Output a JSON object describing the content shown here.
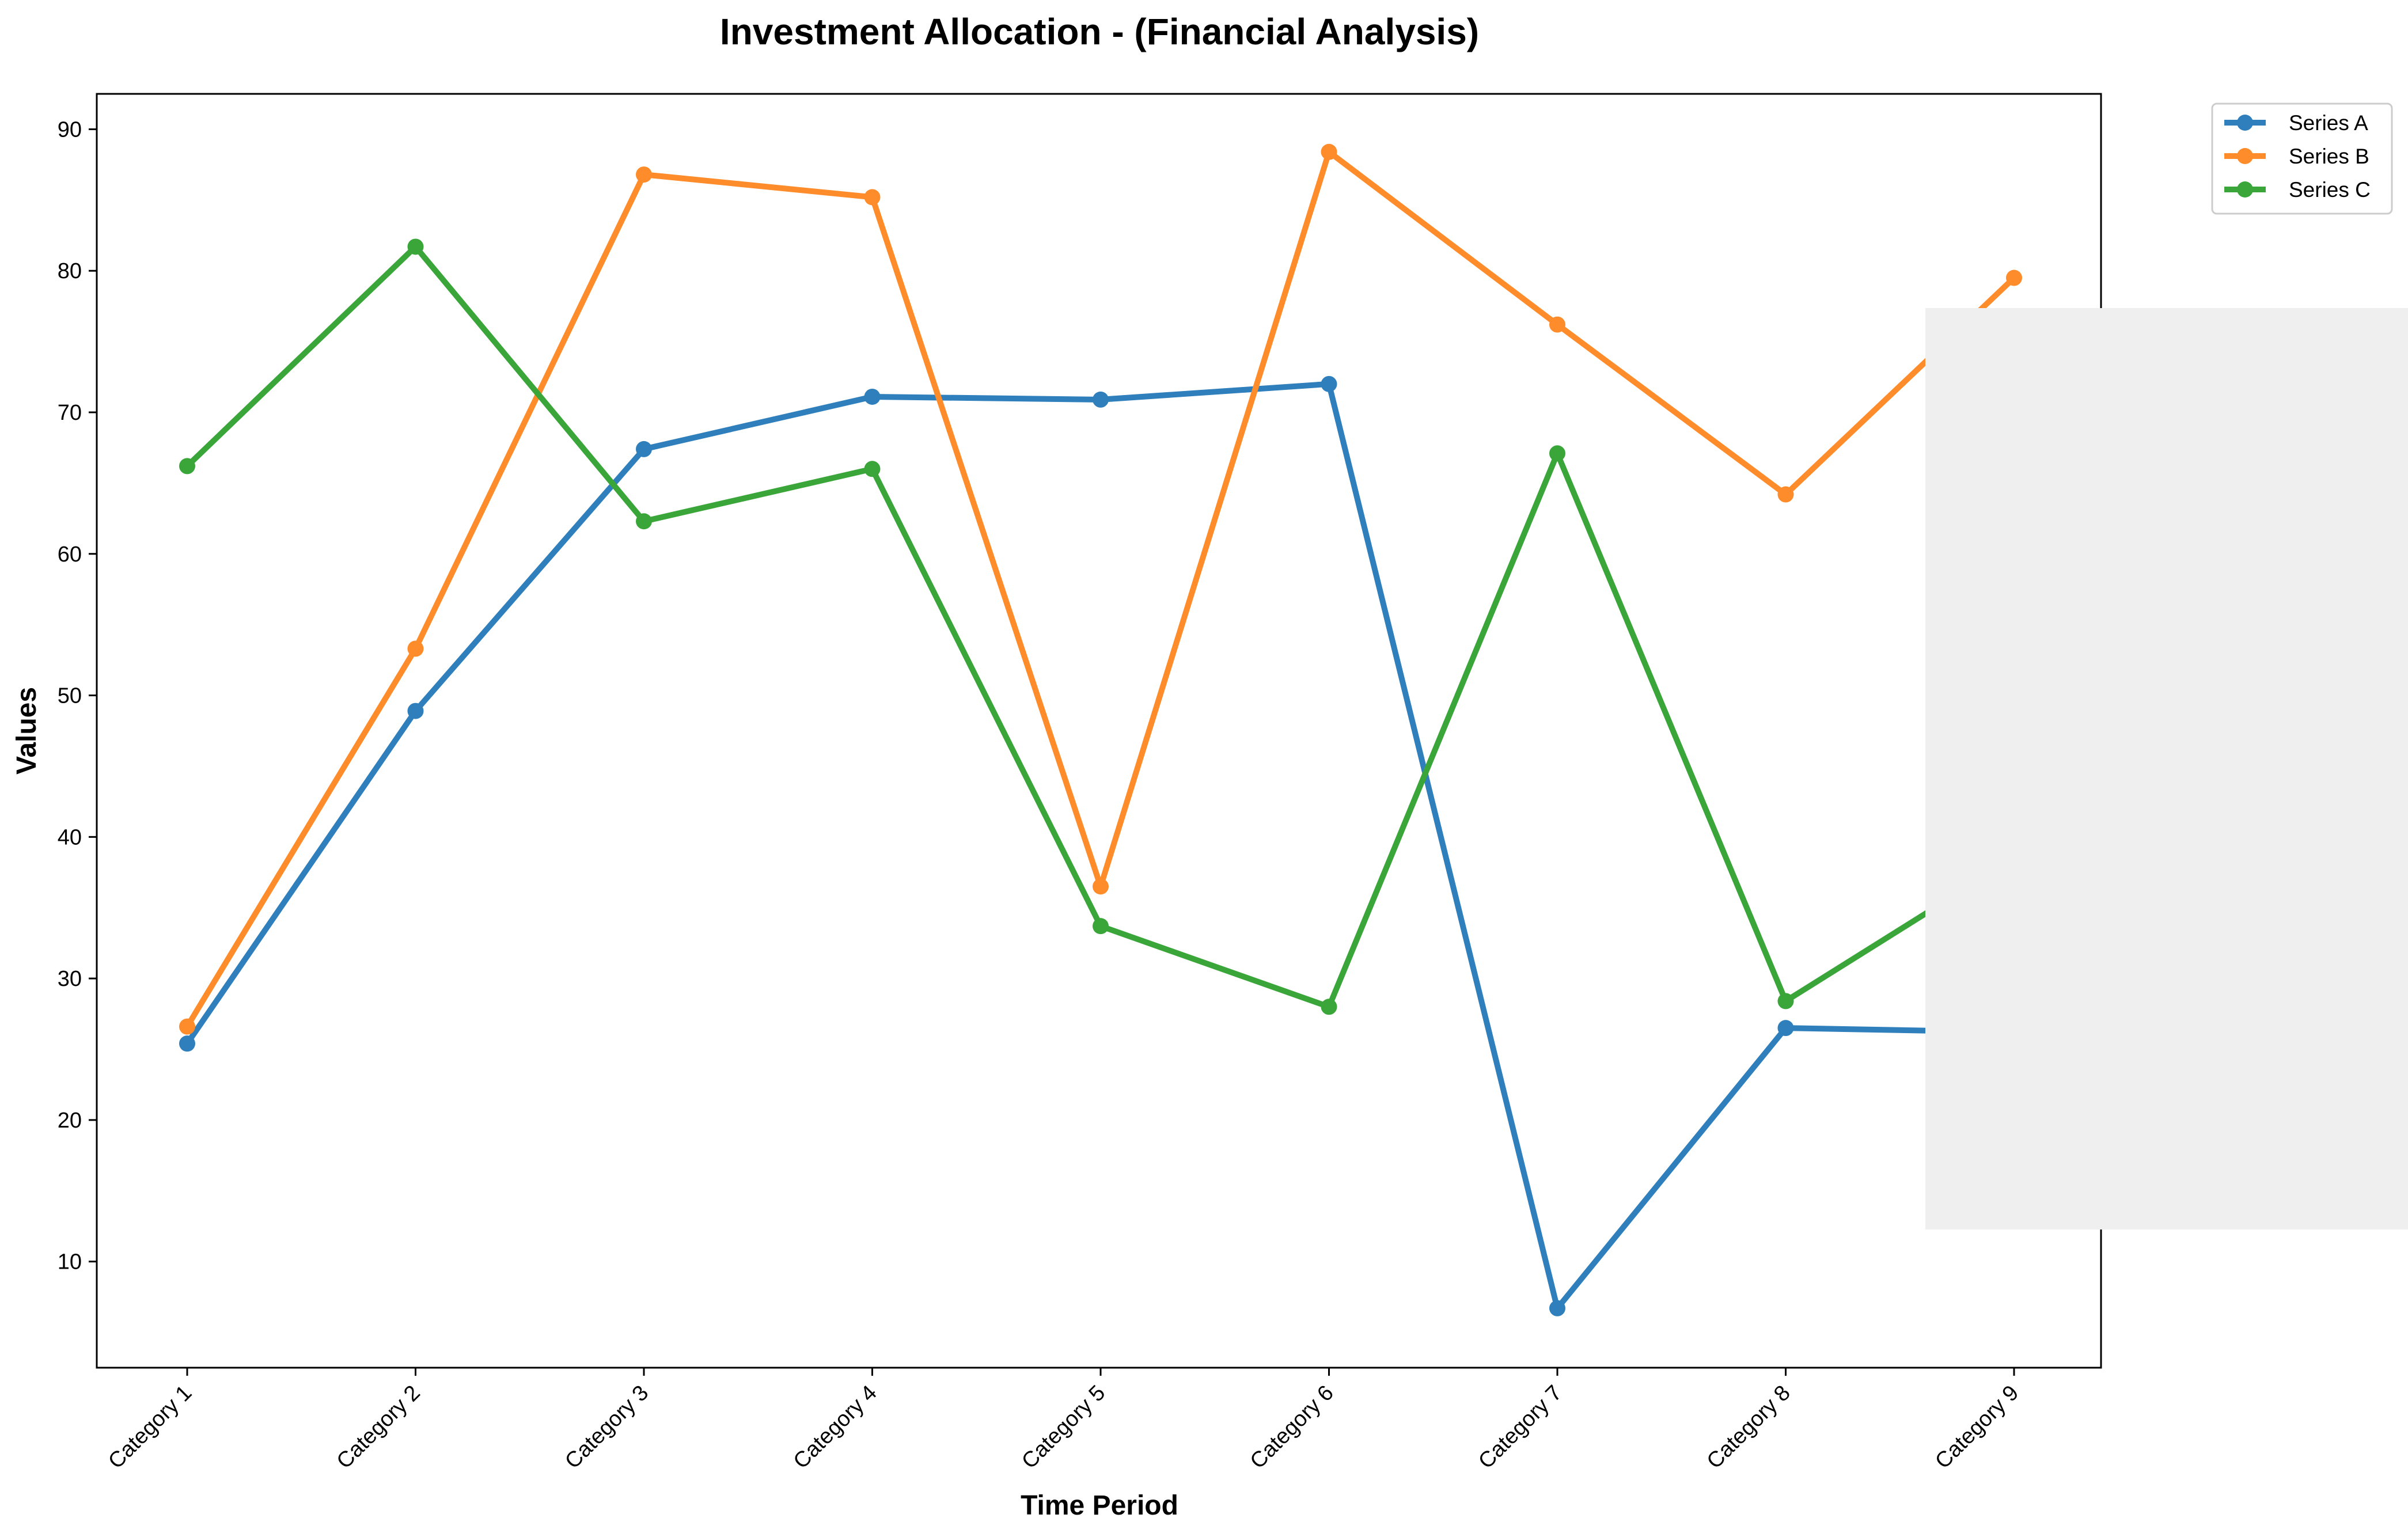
{
  "chart_data": {
    "type": "line",
    "title": "Investment Allocation - (Financial Analysis)",
    "xlabel": "Time Period",
    "ylabel": "Values",
    "categories": [
      "Category 1",
      "Category 2",
      "Category 3",
      "Category 4",
      "Category 5",
      "Category 6",
      "Category 7",
      "Category 8",
      "Category 9"
    ],
    "ylim": [
      2.5,
      92.5
    ],
    "yticks": [
      10,
      20,
      30,
      40,
      50,
      60,
      70,
      80,
      90
    ],
    "grid": false,
    "legend_position": "top-right, outside the plot area",
    "series": [
      {
        "name": "Series A",
        "color": "#2f7fbc",
        "values": [
          25.4,
          48.9,
          67.4,
          71.1,
          70.9,
          72.0,
          6.7,
          26.5,
          26.2
        ]
      },
      {
        "name": "Series B",
        "color": "#ff8c2a",
        "values": [
          26.6,
          53.3,
          86.8,
          85.2,
          36.5,
          88.4,
          76.2,
          64.2,
          79.5
        ]
      },
      {
        "name": "Series C",
        "color": "#3aa63a",
        "values": [
          66.2,
          81.7,
          62.3,
          66.0,
          33.7,
          28.0,
          67.1,
          28.4,
          38.5
        ]
      }
    ],
    "overlay_color": "#efefef"
  }
}
